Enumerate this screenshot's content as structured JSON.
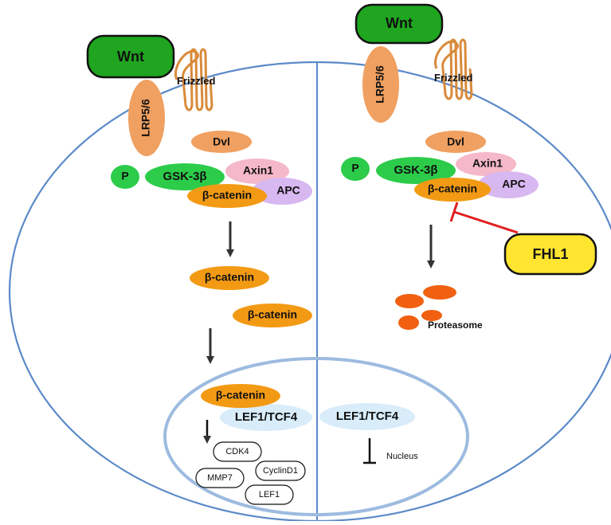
{
  "left": {
    "wnt": "Wnt",
    "lrp": "LRP5/6",
    "frizzled": "Frizzled",
    "dvl": "Dvl",
    "p": "P",
    "gsk": "GSK-3β",
    "axin": "Axin1",
    "apc": "APC",
    "bcat_complex": "β-catenin",
    "bcat_free1": "β-catenin",
    "bcat_free2": "β-catenin",
    "bcat_nucleus": "β-catenin",
    "lef_tcf": "LEF1/TCF4",
    "targets": {
      "cdk4": "CDK4",
      "cyclind1": "CyclinD1",
      "mmp7": "MMP7",
      "lef1": "LEF1"
    }
  },
  "right": {
    "wnt": "Wnt",
    "lrp": "LRP5/6",
    "frizzled": "Frizzled",
    "dvl": "Dvl",
    "p": "P",
    "gsk": "GSK-3β",
    "axin": "Axin1",
    "apc": "APC",
    "bcat_complex": "β-catenin",
    "fhl1": "FHL1",
    "proteasome": "Proteasome",
    "lef_tcf": "LEF1/TCF4",
    "nucleus": "Nucleus"
  },
  "colors": {
    "membrane": "#5b8ac8",
    "nucleus_membrane": "#9dbbe0",
    "wnt": "#1fa51f",
    "lrp": "#f0a060",
    "frizzled": "#d98a3a",
    "dvl": "#f0a060",
    "p": "#2ccc4a",
    "gsk": "#2ccc4a",
    "axin": "#f5b8c8",
    "apc": "#d8b8f0",
    "bcat": "#f39a14",
    "lef_tcf": "#d8ecfa",
    "fhl1": "#ffe530",
    "inhibit": "#e02020",
    "proteasome": "#f06010",
    "arrow": "#333333"
  }
}
